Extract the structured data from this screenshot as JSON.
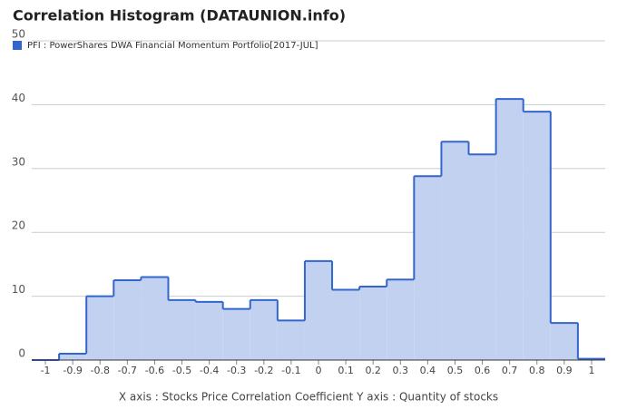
{
  "chart_data": {
    "type": "histogram",
    "title": "Correlation Histogram (DATAUNION.info)",
    "caption": "X axis : Stocks Price Correlation Coefficient  Y axis : Quantity of stocks",
    "series": [
      {
        "name": "PFI : PowerShares DWA Financial Momentum Portfolio[2017-JUL]",
        "color": "#3366cc",
        "fill": "#c3d1f0",
        "values": [
          0,
          1,
          10,
          12.5,
          13,
          9.4,
          9.1,
          8,
          9.4,
          6.2,
          15.5,
          11,
          11.5,
          12.6,
          28.8,
          34.2,
          32.2,
          40.9,
          38.9,
          5.8,
          0.2
        ]
      }
    ],
    "bins": [
      -1.05,
      -0.95,
      -0.85,
      -0.75,
      -0.65,
      -0.55,
      -0.45,
      -0.35,
      -0.25,
      -0.15,
      -0.05,
      0.05,
      0.15,
      0.25,
      0.35,
      0.45,
      0.55,
      0.65,
      0.75,
      0.85,
      0.95,
      1.05
    ],
    "xlim": [
      -1.05,
      1.05
    ],
    "xticks": [
      -1,
      -0.9,
      -0.8,
      -0.7,
      -0.6,
      -0.5,
      -0.4,
      -0.3,
      -0.2,
      -0.1,
      0,
      0.1,
      0.2,
      0.3,
      0.4,
      0.5,
      0.6,
      0.7,
      0.8,
      0.9,
      1
    ],
    "ylim": [
      0,
      50
    ],
    "yticks": [
      0,
      10,
      20,
      30,
      40,
      50
    ],
    "grid": true,
    "legend": "top-left"
  }
}
